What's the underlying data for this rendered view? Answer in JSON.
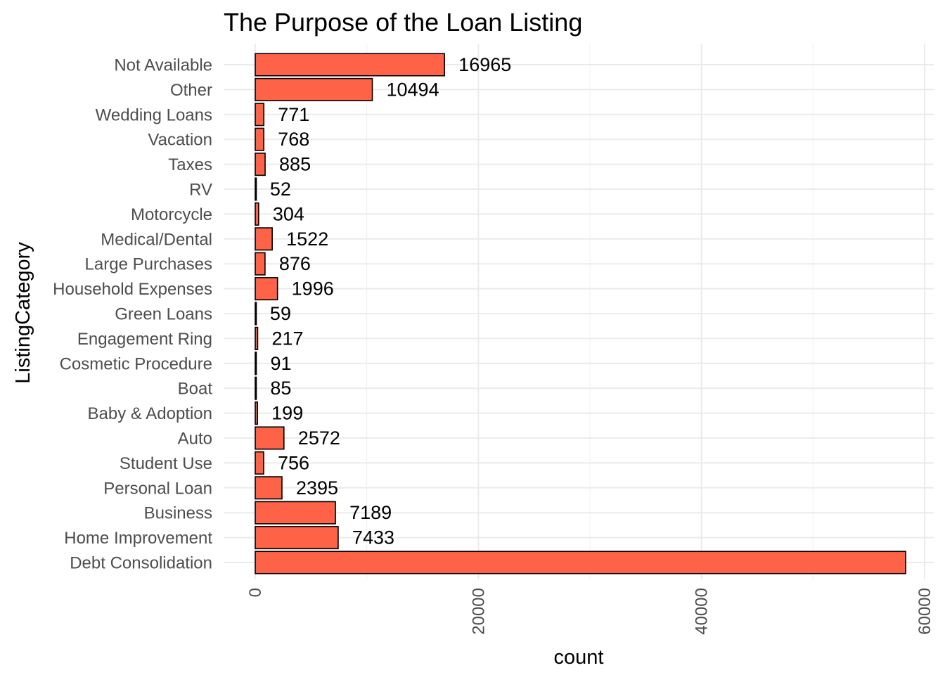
{
  "chart_data": {
    "type": "bar",
    "orientation": "horizontal",
    "title": "The Purpose of the Loan Listing",
    "xlabel": "count",
    "ylabel": "ListingCategory",
    "categories": [
      "Debt Consolidation",
      "Home Improvement",
      "Business",
      "Personal Loan",
      "Student Use",
      "Auto",
      "Baby & Adoption",
      "Boat",
      "Cosmetic Procedure",
      "Engagement Ring",
      "Green Loans",
      "Household Expenses",
      "Large Purchases",
      "Medical/Dental",
      "Motorcycle",
      "RV",
      "Taxes",
      "Vacation",
      "Wedding Loans",
      "Other",
      "Not Available"
    ],
    "values": [
      58308,
      7433,
      7189,
      2395,
      756,
      2572,
      199,
      85,
      91,
      217,
      59,
      1996,
      876,
      1522,
      304,
      52,
      885,
      768,
      771,
      10494,
      16965
    ],
    "data_labels": [
      "",
      "7433",
      "7189",
      "2395",
      "756",
      "2572",
      "199",
      "85",
      "91",
      "217",
      "59",
      "1996",
      "876",
      "1522",
      "304",
      "52",
      "885",
      "768",
      "771",
      "10494",
      "16965"
    ],
    "xlim": [
      0,
      60000
    ],
    "x_ticks": [
      0,
      20000,
      40000,
      60000
    ],
    "x_tick_labels": [
      "0",
      "20000",
      "40000",
      "60000"
    ],
    "grid": true,
    "bar_color": "#FF6347",
    "bar_outline": "#000000",
    "legend": "none"
  }
}
